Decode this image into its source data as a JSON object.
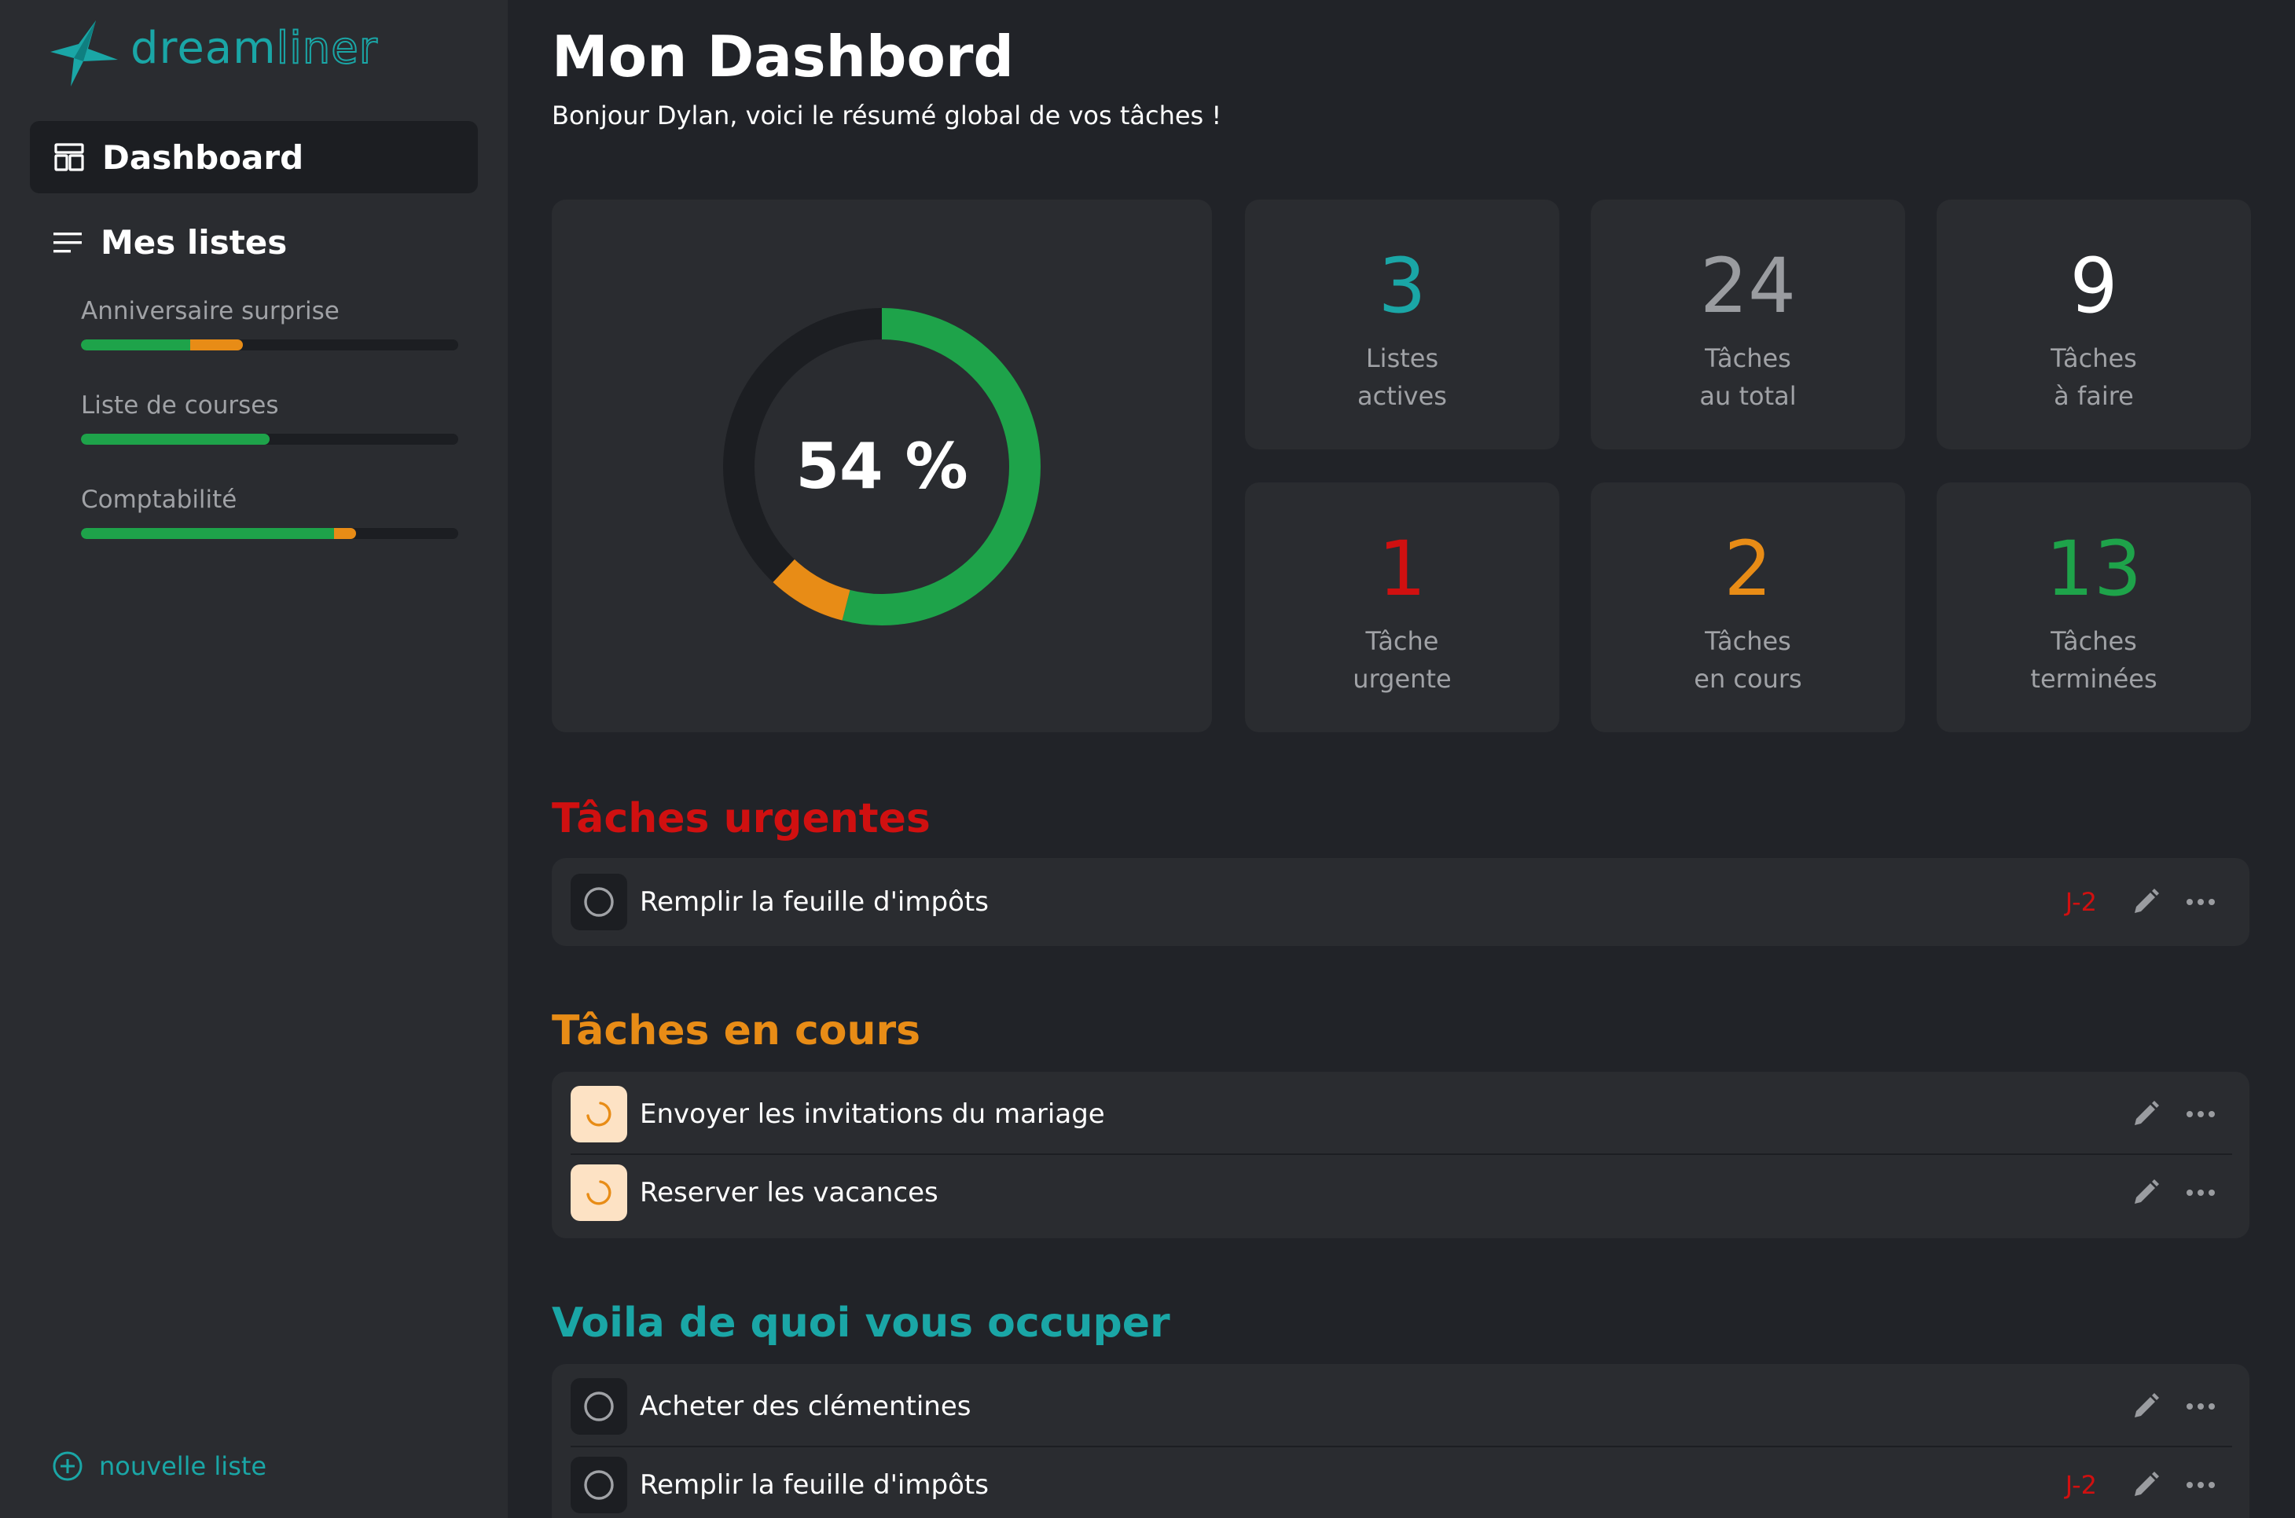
{
  "app": {
    "logo_part1": "dream",
    "logo_part2": "liner"
  },
  "sidebar": {
    "dashboard_label": "Dashboard",
    "lists_label": "Mes listes",
    "lists": [
      {
        "name": "Anniversaire surprise",
        "done": 0.29,
        "in_progress": 0.14
      },
      {
        "name": "Liste de courses",
        "done": 0.5,
        "in_progress": 0
      },
      {
        "name": "Comptabilité",
        "done": 0.67,
        "in_progress": 0.06
      }
    ],
    "new_list_label": "nouvelle liste"
  },
  "header": {
    "title": "Mon Dashbord",
    "subtitle": "Bonjour Dylan, voici le résumé global de vos tâches !"
  },
  "progress": {
    "label": "54 %",
    "done_fraction": 0.54,
    "in_progress_fraction": 0.08
  },
  "stats": [
    {
      "value": "3",
      "line1": "Listes",
      "line2": "actives",
      "color": "#1aa6a6"
    },
    {
      "value": "24",
      "line1": "Tâches",
      "line2": "au total",
      "color": "#9a9ca0"
    },
    {
      "value": "9",
      "line1": "Tâches",
      "line2": "à faire",
      "color": "#ffffff"
    },
    {
      "value": "1",
      "line1": "Tâche",
      "line2": "urgente",
      "color": "#d01010"
    },
    {
      "value": "2",
      "line1": "Tâches",
      "line2": "en cours",
      "color": "#e88c16"
    },
    {
      "value": "13",
      "line1": "Tâches",
      "line2": "terminées",
      "color": "#1ea34a"
    }
  ],
  "sections": {
    "urgent": {
      "title": "Tâches urgentes",
      "color": "#d01010",
      "tasks": [
        {
          "title": "Remplir la feuille d'impôts",
          "due": "J-2"
        }
      ]
    },
    "in_progress": {
      "title": "Tâches en cours",
      "color": "#e88c16",
      "tasks": [
        {
          "title": "Envoyer les invitations du mariage"
        },
        {
          "title": "Reserver les vacances"
        }
      ]
    },
    "todo": {
      "title": "Voila de quoi vous occuper",
      "color": "#1aa6a6",
      "tasks": [
        {
          "title": "Acheter des clémentines"
        },
        {
          "title": "Remplir la feuille d'impôts",
          "due": "J-2"
        }
      ]
    }
  },
  "icons": {
    "logo": "star-rocket-icon",
    "dashboard": "dashboard-layout-icon",
    "lists": "list-lines-icon",
    "new_list": "plus-circle-icon",
    "todo_status": "empty-circle-icon",
    "progress_status": "spinner-arc-icon",
    "edit": "pencil-icon",
    "more": "more-dots-icon"
  }
}
